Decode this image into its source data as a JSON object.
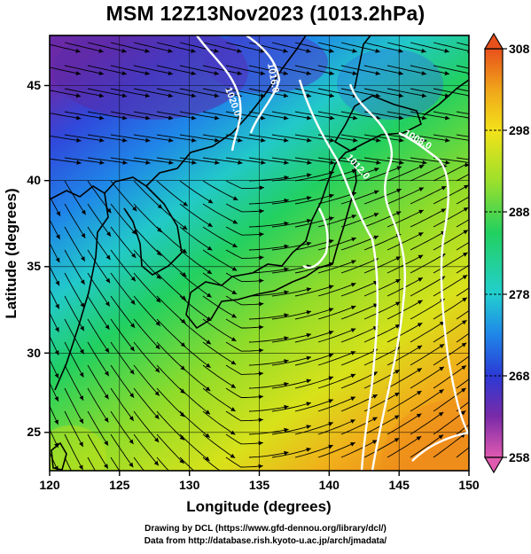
{
  "title": "MSM 12Z13Nov2023 (1013.2hPa)",
  "x_axis": {
    "label": "Longitude (degrees)",
    "range": [
      120,
      150
    ],
    "ticks": [
      120,
      125,
      130,
      135,
      140,
      145,
      150
    ]
  },
  "y_axis": {
    "label": "Latitude  (degrees)",
    "range": [
      22.4,
      47.6
    ],
    "ticks": [
      25,
      30,
      35,
      40,
      45
    ]
  },
  "colorbar": {
    "range": [
      258,
      308
    ],
    "ticks": [
      258,
      268,
      278,
      288,
      298,
      308
    ],
    "colors": [
      "#e05ab0",
      "#7a2aa8",
      "#2b3ad6",
      "#1f86e8",
      "#22cfcf",
      "#22d060",
      "#9fe02a",
      "#f3e21a",
      "#f0a51a",
      "#e8501c"
    ]
  },
  "isobars": [
    {
      "label": "1020.0"
    },
    {
      "label": "1016.0"
    },
    {
      "label": "1012.0"
    },
    {
      "label": "1008.0"
    }
  ],
  "credits": {
    "line1": "Drawing by DCL (https://www.gfd-dennou.org/library/dcl/)",
    "line2": "Data from http://database.rish.kyoto-u.ac.jp/arch/jmadata/"
  }
}
